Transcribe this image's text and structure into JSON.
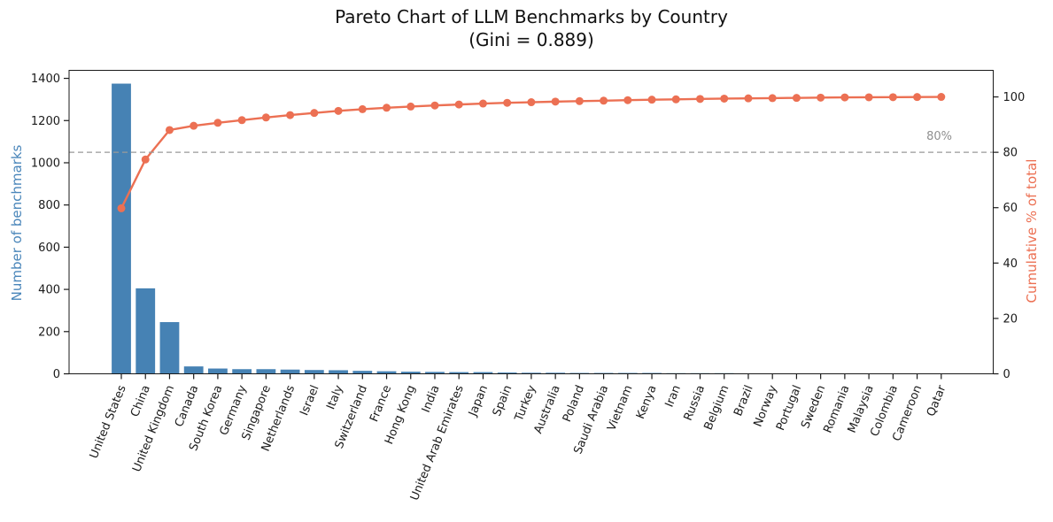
{
  "chart_data": {
    "type": "bar",
    "subtype": "pareto (bars + cumulative % line, twin y axes)",
    "title": "Pareto Chart of LLM Benchmarks by Country",
    "subtitle": "(Gini = 0.889)",
    "gini": 0.889,
    "categories": [
      "United States",
      "China",
      "United Kingdom",
      "Canada",
      "South Korea",
      "Germany",
      "Singapore",
      "Netherlands",
      "Israel",
      "Italy",
      "Switzerland",
      "France",
      "Hong Kong",
      "India",
      "United Arab Emirates",
      "Japan",
      "Spain",
      "Turkey",
      "Australia",
      "Poland",
      "Saudi Arabia",
      "Vietnam",
      "Kenya",
      "Iran",
      "Russia",
      "Belgium",
      "Brazil",
      "Norway",
      "Portugal",
      "Sweden",
      "Romania",
      "Malaysia",
      "Colombia",
      "Cameroon",
      "Qatar"
    ],
    "series": [
      {
        "name": "Number of benchmarks",
        "type": "bar",
        "axis": "left",
        "color": "#4682b4",
        "values": [
          1375,
          405,
          245,
          35,
          25,
          22,
          22,
          20,
          18,
          17,
          14,
          12,
          10,
          9,
          8,
          8,
          6,
          5,
          5,
          4,
          4,
          4,
          4,
          3,
          3,
          3,
          2,
          2,
          2,
          2,
          2,
          1,
          1,
          1,
          1
        ]
      },
      {
        "name": "Cumulative % of total",
        "type": "line",
        "axis": "right",
        "color": "#ec7053",
        "marker": "circle",
        "values": [
          59.78,
          77.39,
          88.04,
          89.57,
          90.65,
          91.61,
          92.57,
          93.43,
          94.22,
          94.96,
          95.57,
          96.09,
          96.52,
          96.91,
          97.26,
          97.61,
          97.87,
          98.09,
          98.3,
          98.48,
          98.65,
          98.83,
          99.0,
          99.13,
          99.26,
          99.39,
          99.48,
          99.57,
          99.65,
          99.74,
          99.83,
          99.87,
          99.91,
          99.96,
          100.0
        ]
      }
    ],
    "ylabel_left": "Number of benchmarks",
    "ylabel_right": "Cumulative % of total",
    "yticks_left": [
      0,
      200,
      400,
      600,
      800,
      1000,
      1200,
      1400
    ],
    "yticks_right": [
      0,
      20,
      40,
      60,
      80,
      100
    ],
    "ylim_left": [
      0,
      1438
    ],
    "ylim_right": [
      0,
      109.6
    ],
    "xlabel_rotation_deg": -68,
    "grid": false,
    "legend": "none",
    "reference_line": {
      "axis": "right",
      "value": 80,
      "label": "80%",
      "style": "dashed",
      "color": "#999999"
    }
  },
  "colors": {
    "bar": "#4682b4",
    "line": "#ec7053",
    "ylabel_left": "#4a86ba",
    "ylabel_right": "#ec7053",
    "reference": "#9a9a9a",
    "reference_text": "#8f8f8f",
    "axis_text": "#1a1a1a",
    "spine": "#1a1a1a",
    "background": "#ffffff"
  }
}
